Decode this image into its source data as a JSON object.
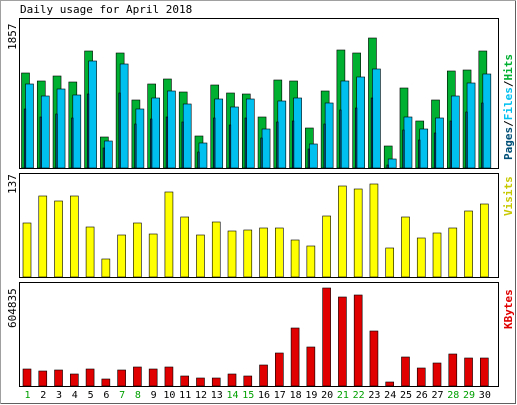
{
  "chart_data": {
    "title": "Daily usage for April 2018",
    "type": "bar",
    "categories": [
      "1",
      "2",
      "3",
      "4",
      "5",
      "6",
      "7",
      "8",
      "9",
      "10",
      "11",
      "12",
      "13",
      "14",
      "15",
      "16",
      "17",
      "18",
      "19",
      "20",
      "21",
      "22",
      "23",
      "24",
      "25",
      "26",
      "27",
      "28",
      "29",
      "30"
    ],
    "weekend_days": [
      "1",
      "7",
      "8",
      "14",
      "15",
      "21",
      "22",
      "28",
      "29"
    ],
    "colors": {
      "hits": "#00b030",
      "files": "#00c0f0",
      "pages": "#005078",
      "visits": "#ffff00",
      "kbytes": "#e00000",
      "weekday_label": "#000000",
      "weekend_label": "#00a000",
      "background": "#ffffff",
      "frame": "#000000"
    },
    "panels": [
      {
        "id": "hits",
        "legend": [
          "Pages",
          "Files",
          "Hits"
        ],
        "legend_colors": [
          "#005078",
          "#00c0f0",
          "#00b030"
        ],
        "ymax_label": "1857",
        "ymax": 1857,
        "series": [
          {
            "name": "Hits",
            "values": [
              1310,
              1208,
              1271,
              1190,
              1620,
              436,
              1596,
              941,
              1167,
              1227,
              1051,
              449,
              1151,
              1036,
              1022,
              709,
              1222,
              1212,
              556,
              1074,
              1638,
              1590,
              1800,
              304,
              1106,
              655,
              946,
              1344,
              1362,
              1623
            ]
          },
          {
            "name": "Files",
            "values": [
              1171,
              1000,
              1099,
              1009,
              1478,
              380,
              1444,
              811,
              968,
              1068,
              882,
              352,
              960,
              852,
              957,
              542,
              928,
              967,
              335,
              898,
              1200,
              1267,
              1372,
              123,
              713,
              540,
              697,
              1000,
              1180,
              1300
            ]
          },
          {
            "name": "Pages",
            "values": [
              823,
              708,
              748,
              686,
              1021,
              276,
              1039,
              606,
              684,
              711,
              638,
              225,
              690,
              600,
              690,
              416,
              638,
              645,
              263,
              610,
              807,
              835,
              972,
              35,
              533,
              386,
              484,
              647,
              775,
              901
            ]
          }
        ]
      },
      {
        "id": "visits",
        "legend": [
          "Visits"
        ],
        "legend_colors": [
          "#ffff00"
        ],
        "ymax_label": "137",
        "ymax": 137,
        "series": [
          {
            "name": "Visits",
            "values": [
              77,
              116,
              109,
              116,
              72,
              26,
              60,
              77,
              61,
              121,
              85,
              60,
              79,
              66,
              67,
              70,
              70,
              53,
              44,
              87,
              130,
              125,
              133,
              42,
              86,
              56,
              63,
              70,
              94,
              104
            ]
          }
        ]
      },
      {
        "id": "kbytes",
        "legend": [
          "KBytes"
        ],
        "legend_colors": [
          "#e00000"
        ],
        "ymax_label": "604835",
        "ymax": 604835,
        "series": [
          {
            "name": "KBytes",
            "values": [
              104000,
              90000,
              101000,
              71000,
              102000,
              45000,
              96000,
              120000,
              108000,
              115000,
              64000,
              50000,
              50000,
              76000,
              59000,
              131000,
              203000,
              360000,
              240000,
              604835,
              552000,
              559000,
              340000,
              26000,
              180000,
              114000,
              140000,
              200000,
              175000,
              175000
            ]
          }
        ]
      }
    ]
  }
}
